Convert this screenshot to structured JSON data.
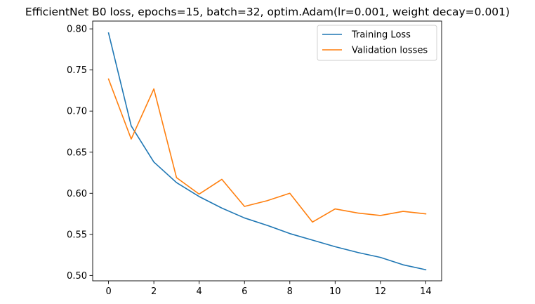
{
  "chart_data": {
    "type": "line",
    "title": "EfficientNet B0 loss, epochs=15, batch=32, optim.Adam(lr=0.001, weight decay=0.001)",
    "xlabel": "",
    "ylabel": "",
    "x": [
      0,
      1,
      2,
      3,
      4,
      5,
      6,
      7,
      8,
      9,
      10,
      11,
      12,
      13,
      14
    ],
    "xlim": [
      -0.7,
      14.7
    ],
    "ylim": [
      0.4935,
      0.8095
    ],
    "xticks": [
      0,
      2,
      4,
      6,
      8,
      10,
      12,
      14
    ],
    "xtick_labels": [
      "0",
      "2",
      "4",
      "6",
      "8",
      "10",
      "12",
      "14"
    ],
    "yticks": [
      0.5,
      0.55,
      0.6,
      0.65,
      0.7,
      0.75,
      0.8
    ],
    "ytick_labels": [
      "0.50",
      "0.55",
      "0.60",
      "0.65",
      "0.70",
      "0.75",
      "0.80"
    ],
    "grid": false,
    "legend_position": "top-right",
    "series": [
      {
        "name": "Training Loss",
        "color": "#1f77b4",
        "values": [
          0.795,
          0.682,
          0.638,
          0.613,
          0.596,
          0.582,
          0.57,
          0.561,
          0.551,
          0.543,
          0.535,
          0.528,
          0.522,
          0.513,
          0.507
        ]
      },
      {
        "name": "Validation losses",
        "color": "#ff7f0e",
        "values": [
          0.739,
          0.666,
          0.727,
          0.619,
          0.599,
          0.617,
          0.584,
          0.591,
          0.6,
          0.565,
          0.581,
          0.576,
          0.573,
          0.578,
          0.575
        ]
      }
    ]
  }
}
